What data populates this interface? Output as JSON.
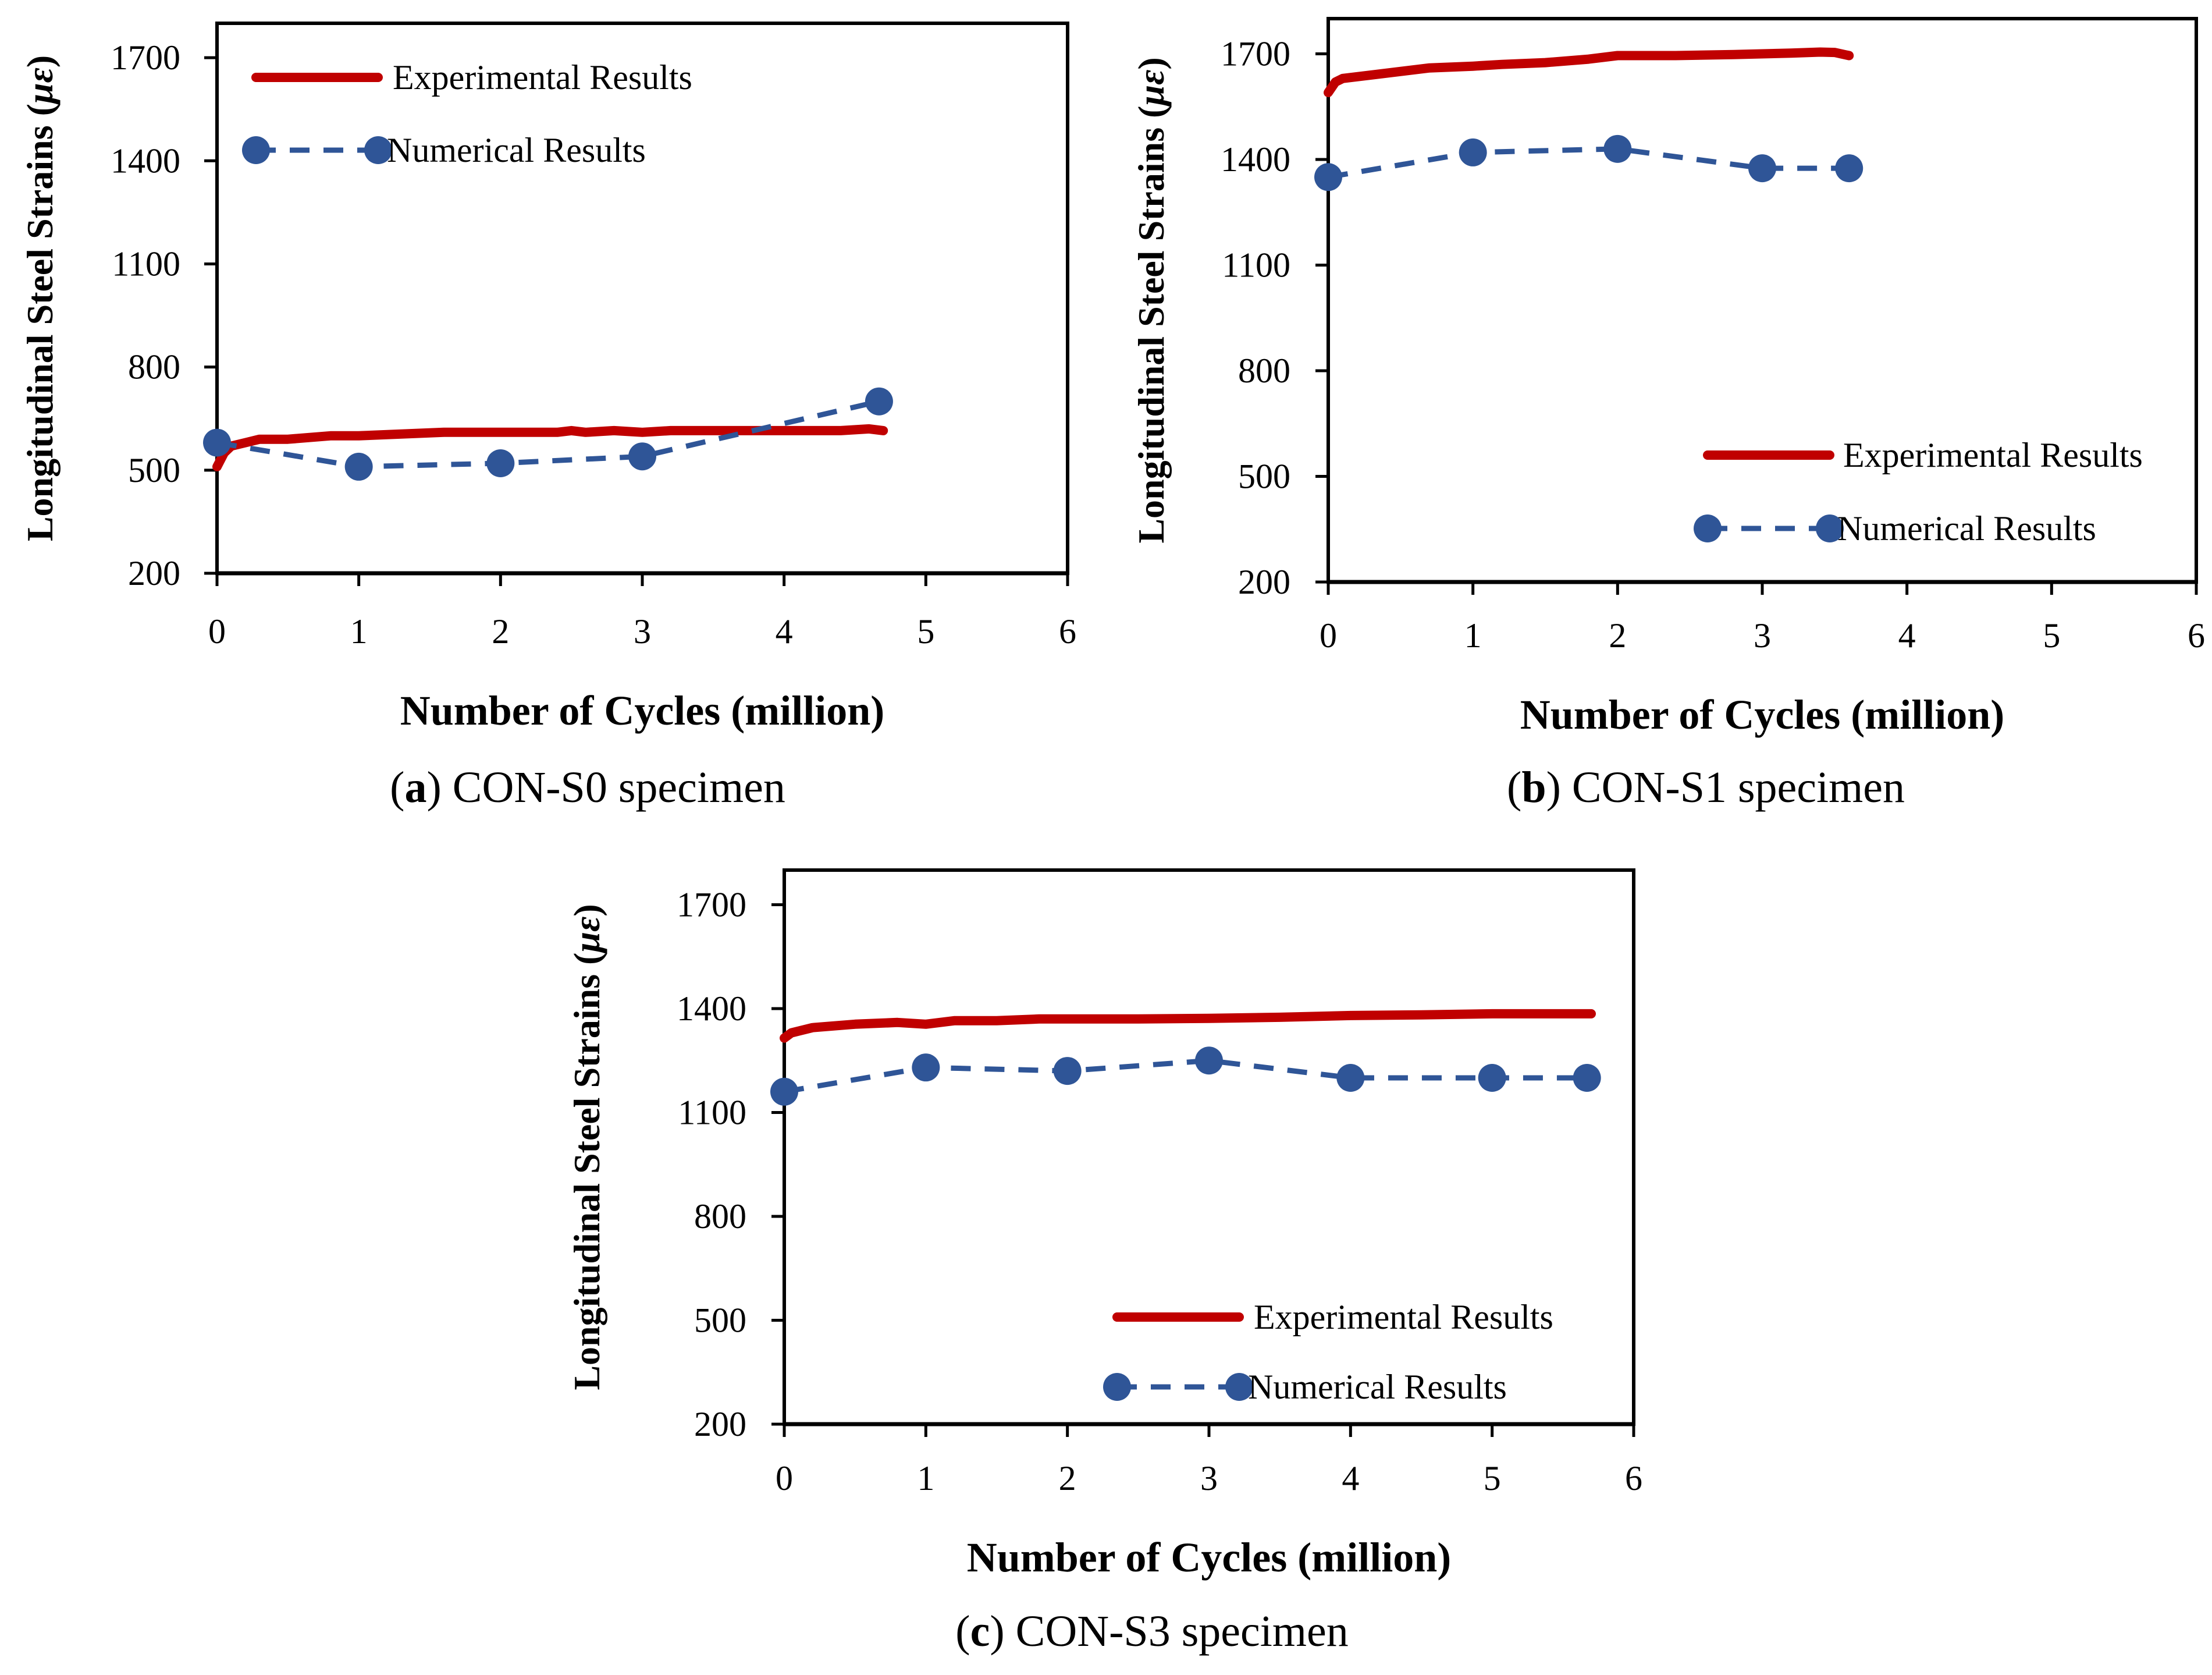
{
  "figure": {
    "colors": {
      "experimental": "#C00000",
      "numerical": "#2F5597",
      "axis": "#000000"
    },
    "legend_labels": [
      "Experimental Results",
      "Numerical Results"
    ]
  },
  "chart_data": [
    {
      "type": "line",
      "panel": "a",
      "caption_letter": "a",
      "caption_text": "CON-S0 specimen",
      "xlabel": "Number of Cycles (million)",
      "ylabel_main": "Longitudinal Steel Strains (",
      "ylabel_symbol": "με",
      "ylabel_close": ")",
      "xlim": [
        0,
        6
      ],
      "ylim": [
        200,
        1800
      ],
      "xticks": [
        0,
        1,
        2,
        3,
        4,
        5,
        6
      ],
      "yticks": [
        200,
        500,
        800,
        1100,
        1400,
        1700
      ],
      "legend_position": "top-left",
      "series": [
        {
          "name": "Experimental Results",
          "style": "solid",
          "x": [
            0,
            0.05,
            0.1,
            0.2,
            0.3,
            0.5,
            0.8,
            1,
            1.3,
            1.6,
            2,
            2.4,
            2.5,
            2.6,
            2.8,
            3,
            3.2,
            3.5,
            4,
            4.4,
            4.6,
            4.7
          ],
          "y": [
            510,
            550,
            570,
            580,
            590,
            590,
            600,
            600,
            605,
            610,
            610,
            610,
            615,
            610,
            615,
            610,
            615,
            615,
            615,
            615,
            620,
            615
          ]
        },
        {
          "name": "Numerical Results",
          "style": "dashed-markers",
          "x": [
            0,
            1,
            2,
            3,
            4.67
          ],
          "y": [
            580,
            510,
            520,
            540,
            700
          ]
        }
      ]
    },
    {
      "type": "line",
      "panel": "b",
      "caption_letter": "b",
      "caption_text": "CON-S1 specimen",
      "xlabel": "Number of Cycles (million)",
      "ylabel_main": "Longitudinal Steel Strains (",
      "ylabel_symbol": "με",
      "ylabel_close": ")",
      "xlim": [
        0,
        6
      ],
      "ylim": [
        200,
        1800
      ],
      "xticks": [
        0,
        1,
        2,
        3,
        4,
        5,
        6
      ],
      "yticks": [
        200,
        500,
        800,
        1100,
        1400,
        1700
      ],
      "legend_position": "bottom-right",
      "series": [
        {
          "name": "Experimental Results",
          "style": "solid",
          "x": [
            0,
            0.05,
            0.1,
            0.3,
            0.7,
            1,
            1.2,
            1.5,
            1.8,
            2,
            2.4,
            2.8,
            3,
            3.2,
            3.4,
            3.5,
            3.6
          ],
          "y": [
            1590,
            1620,
            1630,
            1640,
            1660,
            1665,
            1670,
            1675,
            1685,
            1695,
            1695,
            1698,
            1700,
            1702,
            1705,
            1704,
            1695
          ]
        },
        {
          "name": "Numerical Results",
          "style": "dashed-markers",
          "x": [
            0,
            1,
            2,
            3,
            3.6
          ],
          "y": [
            1350,
            1420,
            1430,
            1375,
            1375
          ]
        }
      ]
    },
    {
      "type": "line",
      "panel": "c",
      "caption_letter": "c",
      "caption_text": "CON-S3 specimen",
      "xlabel": "Number of Cycles (million)",
      "ylabel_main": "Longitudinal Steel Strains (",
      "ylabel_symbol": "με",
      "ylabel_close": ")",
      "xlim": [
        0,
        6
      ],
      "ylim": [
        200,
        1800
      ],
      "xticks": [
        0,
        1,
        2,
        3,
        4,
        5,
        6
      ],
      "yticks": [
        200,
        500,
        800,
        1100,
        1400,
        1700
      ],
      "legend_position": "bottom-right",
      "series": [
        {
          "name": "Experimental Results",
          "style": "solid",
          "x": [
            0,
            0.05,
            0.2,
            0.5,
            0.8,
            1,
            1.2,
            1.5,
            1.8,
            2,
            2.5,
            3,
            3.5,
            4,
            4.5,
            5,
            5.5,
            5.7
          ],
          "y": [
            1315,
            1330,
            1345,
            1355,
            1360,
            1355,
            1365,
            1365,
            1370,
            1370,
            1370,
            1372,
            1375,
            1380,
            1382,
            1385,
            1385,
            1385
          ]
        },
        {
          "name": "Numerical Results",
          "style": "dashed-markers",
          "x": [
            0,
            1,
            2,
            3,
            4,
            5,
            5.67
          ],
          "y": [
            1160,
            1230,
            1220,
            1250,
            1200,
            1200,
            1200
          ]
        }
      ]
    }
  ]
}
